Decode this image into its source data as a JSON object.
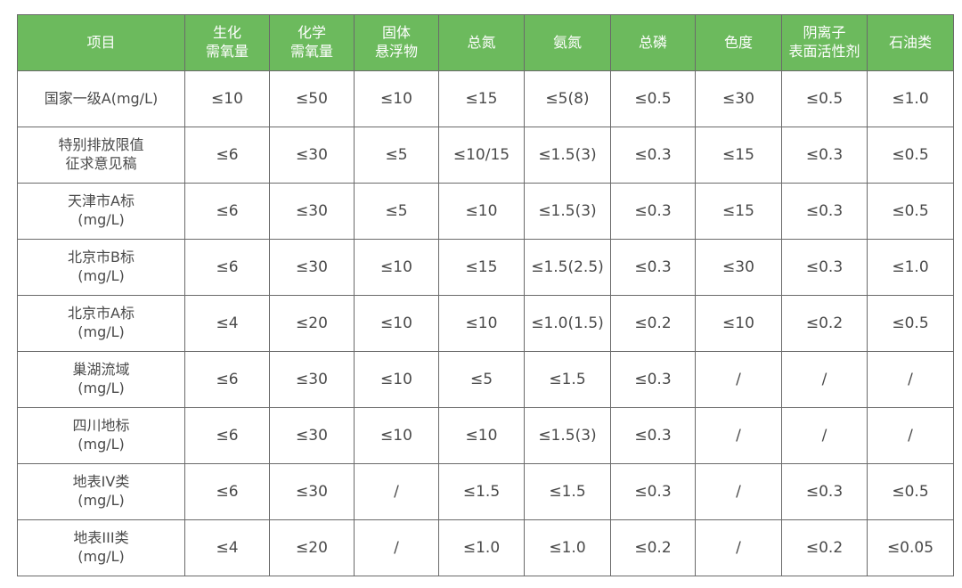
{
  "colors": {
    "header_bg": "#6cba5d",
    "header_text": "#ffffff",
    "border": "#6a6a6a",
    "cell_text": "#4a4a4a"
  },
  "headers": [
    [
      "项目"
    ],
    [
      "生化",
      "需氧量"
    ],
    [
      "化学",
      "需氧量"
    ],
    [
      "固体",
      "悬浮物"
    ],
    [
      "总氮"
    ],
    [
      "氨氮"
    ],
    [
      "总磷"
    ],
    [
      "色度"
    ],
    [
      "阴离子",
      "表面活性剂"
    ],
    [
      "石油类"
    ]
  ],
  "rows": [
    {
      "label": [
        "国家一级A(mg/L)"
      ],
      "values": [
        "≤10",
        "≤50",
        "≤10",
        "≤15",
        "≤5(8)",
        "≤0.5",
        "≤30",
        "≤0.5",
        "≤1.0"
      ]
    },
    {
      "label": [
        "特别排放限值",
        "征求意见稿"
      ],
      "values": [
        "≤6",
        "≤30",
        "≤5",
        "≤10/15",
        "≤1.5(3)",
        "≤0.3",
        "≤15",
        "≤0.3",
        "≤0.5"
      ]
    },
    {
      "label": [
        "天津市A标",
        "(mg/L)"
      ],
      "values": [
        "≤6",
        "≤30",
        "≤5",
        "≤10",
        "≤1.5(3)",
        "≤0.3",
        "≤15",
        "≤0.3",
        "≤0.5"
      ]
    },
    {
      "label": [
        "北京市B标",
        "(mg/L)"
      ],
      "values": [
        "≤6",
        "≤30",
        "≤10",
        "≤15",
        "≤1.5(2.5)",
        "≤0.3",
        "≤30",
        "≤0.3",
        "≤1.0"
      ]
    },
    {
      "label": [
        "北京市A标",
        "(mg/L)"
      ],
      "values": [
        "≤4",
        "≤20",
        "≤10",
        "≤10",
        "≤1.0(1.5)",
        "≤0.2",
        "≤10",
        "≤0.2",
        "≤0.5"
      ]
    },
    {
      "label": [
        "巢湖流域",
        "(mg/L)"
      ],
      "values": [
        "≤6",
        "≤30",
        "≤10",
        "≤5",
        "≤1.5",
        "≤0.3",
        "/",
        "/",
        "/"
      ]
    },
    {
      "label": [
        "四川地标",
        "(mg/L)"
      ],
      "values": [
        "≤6",
        "≤30",
        "≤10",
        "≤10",
        "≤1.5(3)",
        "≤0.3",
        "/",
        "/",
        "/"
      ]
    },
    {
      "label": [
        "地表IV类",
        "(mg/L)"
      ],
      "values": [
        "≤6",
        "≤30",
        "/",
        "≤1.5",
        "≤1.5",
        "≤0.3",
        "/",
        "≤0.3",
        "≤0.5"
      ]
    },
    {
      "label": [
        "地表III类",
        "(mg/L)"
      ],
      "values": [
        "≤4",
        "≤20",
        "/",
        "≤1.0",
        "≤1.0",
        "≤0.2",
        "/",
        "≤0.2",
        "≤0.05"
      ]
    }
  ]
}
